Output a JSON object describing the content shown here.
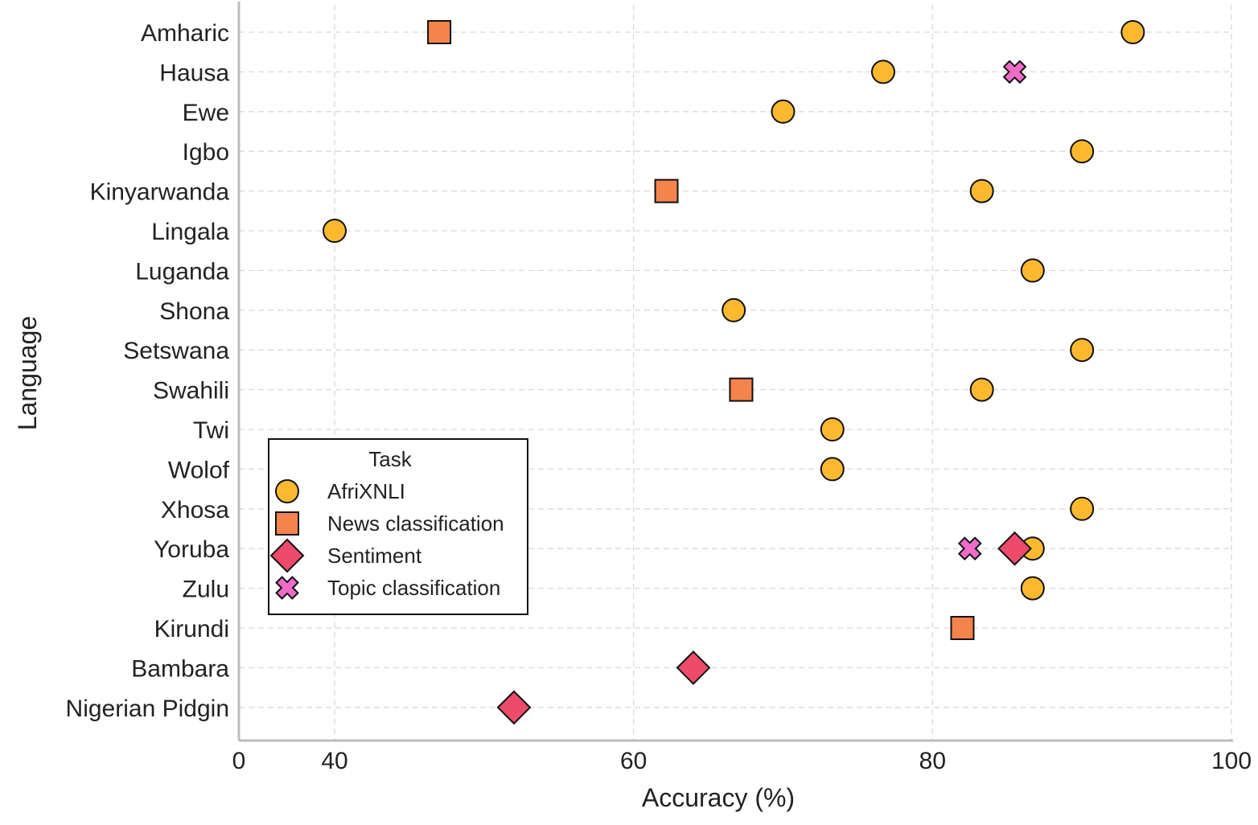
{
  "chart_data": {
    "type": "scatter",
    "xlabel": "Accuracy (%)",
    "ylabel": "Language",
    "xlim": [
      0,
      100
    ],
    "x_ticks": [
      "0",
      "40",
      "60",
      "80",
      "100"
    ],
    "grid": true,
    "legend_title": "Task",
    "legend_position": "lower-left",
    "languages": [
      "Amharic",
      "Hausa",
      "Ewe",
      "Igbo",
      "Kinyarwanda",
      "Lingala",
      "Luganda",
      "Shona",
      "Setswana",
      "Swahili",
      "Twi",
      "Wolof",
      "Xhosa",
      "Yoruba",
      "Zulu",
      "Kirundi",
      "Bambara",
      "Nigerian Pidgin"
    ],
    "series": [
      {
        "name": "AfriXNLI",
        "marker": "circle",
        "color": "#FDB92E",
        "points": [
          {
            "language": "Amharic",
            "value": 93.4
          },
          {
            "language": "Hausa",
            "value": 76.7
          },
          {
            "language": "Ewe",
            "value": 70.0
          },
          {
            "language": "Igbo",
            "value": 90.0
          },
          {
            "language": "Kinyarwanda",
            "value": 83.3
          },
          {
            "language": "Lingala",
            "value": 40.0
          },
          {
            "language": "Luganda",
            "value": 86.7
          },
          {
            "language": "Shona",
            "value": 66.7
          },
          {
            "language": "Setswana",
            "value": 90.0
          },
          {
            "language": "Swahili",
            "value": 83.3
          },
          {
            "language": "Twi",
            "value": 73.3
          },
          {
            "language": "Wolof",
            "value": 73.3
          },
          {
            "language": "Xhosa",
            "value": 90.0
          },
          {
            "language": "Yoruba",
            "value": 86.7
          },
          {
            "language": "Zulu",
            "value": 86.7
          }
        ]
      },
      {
        "name": "News classification",
        "marker": "square",
        "color": "#F4844C",
        "points": [
          {
            "language": "Amharic",
            "value": 47.0
          },
          {
            "language": "Kinyarwanda",
            "value": 62.2
          },
          {
            "language": "Swahili",
            "value": 67.2
          },
          {
            "language": "Kirundi",
            "value": 82.0
          }
        ]
      },
      {
        "name": "Sentiment",
        "marker": "diamond",
        "color": "#EE4B6A",
        "points": [
          {
            "language": "Yoruba",
            "value": 85.5
          },
          {
            "language": "Bambara",
            "value": 64.0
          },
          {
            "language": "Nigerian Pidgin",
            "value": 52.0
          }
        ]
      },
      {
        "name": "Topic classification",
        "marker": "x",
        "color": "#F06CC8",
        "points": [
          {
            "language": "Hausa",
            "value": 85.5
          },
          {
            "language": "Yoruba",
            "value": 82.5
          }
        ]
      }
    ]
  }
}
